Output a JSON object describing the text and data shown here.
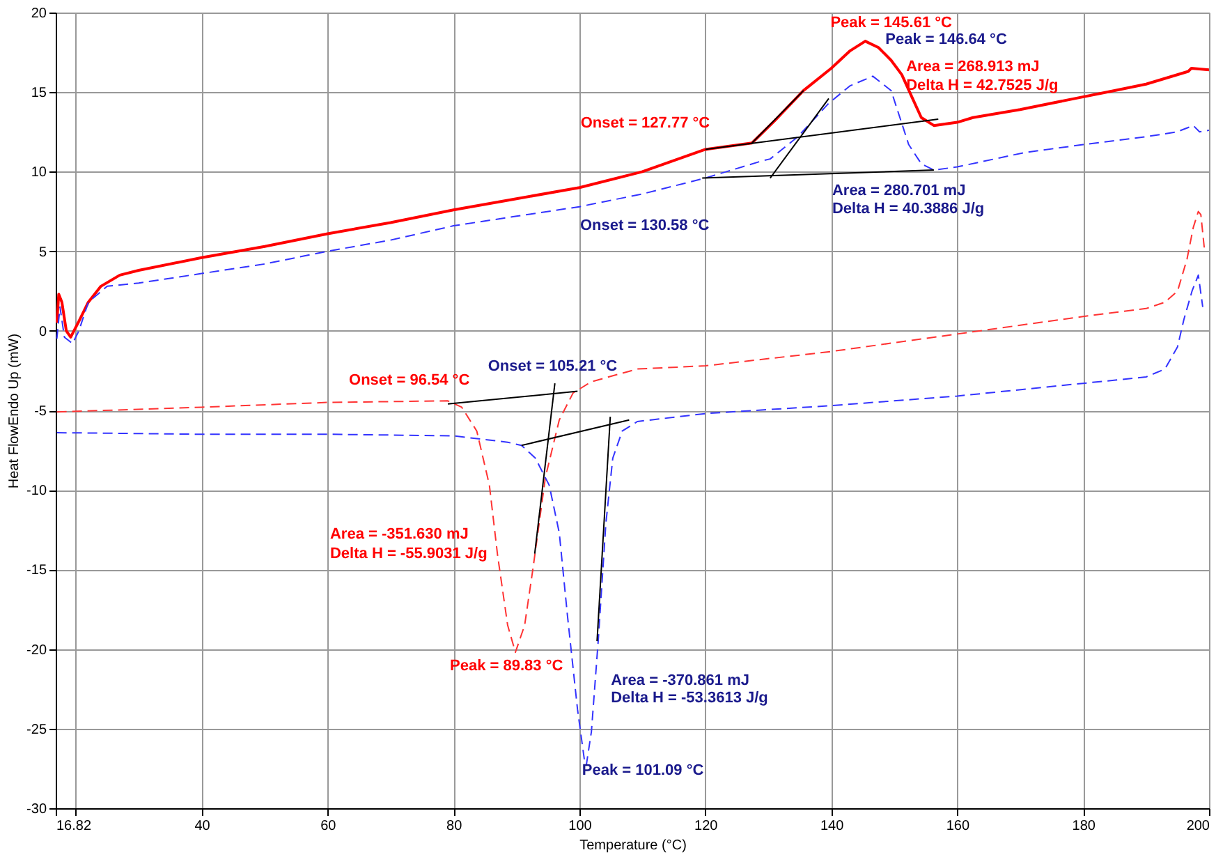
{
  "chart_data": {
    "type": "line",
    "xlabel": "Temperature (°C)",
    "ylabel": "Heat FlowEndo Up (mW)",
    "xlim": [
      16.82,
      200
    ],
    "ylim": [
      -30,
      20
    ],
    "xticks": [
      16.82,
      {
        "value": 20,
        "label": null
      },
      40,
      60,
      80,
      100,
      120,
      140,
      160,
      180,
      200
    ],
    "yticks": [
      -30,
      -25,
      -20,
      -15,
      -10,
      -5,
      0,
      5,
      10,
      15,
      20
    ],
    "grid": true,
    "marker": "none",
    "series": [
      {
        "color": "#ff0000",
        "line_style": "solid",
        "x": [
          17.0,
          17.3,
          17.8,
          18.5,
          19.2,
          20.5,
          22.0,
          24.0,
          27.0,
          30.0,
          40.0,
          50.0,
          60.0,
          70.0,
          80.0,
          90.0,
          100.0,
          110.0,
          120.0,
          127.4,
          131.0,
          135.6,
          140.0,
          143.0,
          145.4,
          147.5,
          149.5,
          151.2,
          152.8,
          154.3,
          156.3,
          160.0,
          162.5,
          170.0,
          178.7,
          185.0,
          190.0,
          196.7,
          197.2,
          200.0
        ],
        "values": [
          0.5,
          2.3,
          1.8,
          0.0,
          -0.4,
          0.6,
          1.8,
          2.8,
          3.5,
          3.8,
          4.6,
          5.3,
          6.1,
          6.8,
          7.6,
          8.3,
          9.0,
          10.0,
          11.4,
          11.8,
          13.2,
          15.1,
          16.5,
          17.6,
          18.2,
          17.8,
          17.0,
          16.1,
          14.7,
          13.4,
          12.9,
          13.1,
          13.4,
          13.9,
          14.6,
          15.1,
          15.5,
          16.3,
          16.5,
          16.4
        ]
      },
      {
        "color": "#3333ff",
        "line_style": "dashed",
        "x": [
          17.0,
          17.5,
          18.2,
          19.5,
          20.5,
          22.0,
          25.0,
          30.0,
          40.0,
          50.0,
          60.0,
          70.0,
          80.0,
          90.0,
          100.0,
          110.0,
          120.0,
          125.0,
          129.2,
          130.3,
          134.7,
          139.6,
          143.0,
          146.6,
          149.5,
          152.3,
          154.3,
          156.3,
          160.0,
          170.7,
          180.0,
          190.0,
          194.9,
          197.5,
          198.5,
          200.0
        ],
        "values": [
          -0.5,
          1.5,
          -0.4,
          -0.8,
          0.0,
          1.8,
          2.8,
          3.0,
          3.6,
          4.2,
          5.0,
          5.7,
          6.6,
          7.2,
          7.8,
          8.6,
          9.6,
          10.2,
          10.7,
          10.8,
          12.2,
          14.3,
          15.4,
          16.0,
          15.1,
          11.7,
          10.5,
          10.1,
          10.3,
          11.2,
          11.7,
          12.2,
          12.5,
          12.9,
          12.5,
          12.6
        ]
      },
      {
        "color": "#ff3333",
        "line_style": "dashed",
        "x": [
          17.0,
          40.0,
          60.0,
          79.1,
          81.3,
          83.7,
          85.7,
          87.0,
          88.6,
          89.83,
          91.3,
          92.6,
          94.6,
          96.8,
          99.0,
          101.9,
          109.2,
          120.0,
          140.0,
          160.0,
          180.0,
          190.0,
          193.0,
          195.0,
          196.5,
          197.5,
          198.3,
          198.7,
          199.3
        ],
        "values": [
          -5.1,
          -4.8,
          -4.5,
          -4.4,
          -4.8,
          -6.3,
          -9.7,
          -14.1,
          -18.5,
          -20.2,
          -18.5,
          -15.0,
          -9.2,
          -5.6,
          -3.9,
          -3.2,
          -2.4,
          -2.2,
          -1.3,
          -0.2,
          0.9,
          1.4,
          1.8,
          2.5,
          4.5,
          6.5,
          7.5,
          7.3,
          5.0
        ]
      },
      {
        "color": "#3333ff",
        "line_style": "dashed",
        "x": [
          17.0,
          40.0,
          60.0,
          80.0,
          88.6,
          90.8,
          93.0,
          95.2,
          96.8,
          98.1,
          99.7,
          100.8,
          101.09,
          101.9,
          103.0,
          104.2,
          105.3,
          106.8,
          109.2,
          120.0,
          140.0,
          160.0,
          180.0,
          190.0,
          193.0,
          195.0,
          196.0,
          197.3,
          198.3,
          199.0
        ],
        "values": [
          -6.4,
          -6.5,
          -6.5,
          -6.6,
          -7.0,
          -7.2,
          -8.0,
          -9.7,
          -12.7,
          -17.9,
          -23.8,
          -27.0,
          -27.3,
          -25.2,
          -19.4,
          -12.1,
          -8.0,
          -6.3,
          -5.7,
          -5.2,
          -4.7,
          -4.1,
          -3.3,
          -2.9,
          -2.4,
          -1.0,
          0.7,
          2.5,
          3.5,
          1.5
        ]
      },
      {
        "color": "#000000",
        "line_style": "solid",
        "x": [
          120.0,
          157.0
        ],
        "values": [
          11.4,
          13.3
        ]
      },
      {
        "color": "#000000",
        "line_style": "solid",
        "x": [
          127.4,
          135.6
        ],
        "values": [
          11.8,
          15.1
        ]
      },
      {
        "color": "#000000",
        "line_style": "solid",
        "x": [
          119.5,
          156.3
        ],
        "values": [
          9.6,
          10.1
        ]
      },
      {
        "color": "#000000",
        "line_style": "solid",
        "x": [
          130.3,
          139.6
        ],
        "values": [
          9.6,
          14.6
        ]
      },
      {
        "color": "#000000",
        "line_style": "solid",
        "x": [
          79.1,
          99.7
        ],
        "values": [
          -4.6,
          -3.8
        ]
      },
      {
        "color": "#000000",
        "line_style": "solid",
        "x": [
          96.1,
          92.9
        ],
        "values": [
          -3.3,
          -14.0
        ]
      },
      {
        "color": "#000000",
        "line_style": "solid",
        "x": [
          90.8,
          107.9
        ],
        "values": [
          -7.2,
          -5.6
        ]
      },
      {
        "color": "#000000",
        "line_style": "solid",
        "x": [
          104.9,
          102.8
        ],
        "values": [
          -5.4,
          -19.5
        ]
      }
    ],
    "annotations": [
      {
        "text": "Peak = 145.61 °C",
        "x": 145.4,
        "y": 18.2
      },
      {
        "text": "Peak = 146.64 °C",
        "x": 146.6,
        "y": 16.0
      },
      "Area = 268.913 mJ",
      "Delta H = 42.7525 J/g",
      {
        "text": "Onset = 127.77 °C",
        "x": 127.4,
        "y": 11.8
      },
      {
        "text": "Area = 280.701 mJ",
        "x": 156.3,
        "y": 10.1
      },
      {
        "text": "Delta H = 40.3886 J/g",
        "x": 156.3,
        "y": 10.1
      },
      "Onset = 130.58 °C",
      {
        "text": "Onset = 96.54 °C",
        "x": 79.1,
        "y": -4.6
      },
      {
        "text": "Onset = 105.21 °C",
        "x": 96.1,
        "y": -3.3
      },
      "Area = -351.630 mJ",
      "Delta H = -55.9031 J/g",
      {
        "text": "Peak = 89.83 °C",
        "x": 89.83,
        "y": -20.2
      },
      "Area = -370.861 mJ",
      "Delta H = -53.3613 J/g",
      {
        "text": "Peak = 101.09 °C",
        "x": 101.09,
        "y": -27.3
      }
    ]
  }
}
